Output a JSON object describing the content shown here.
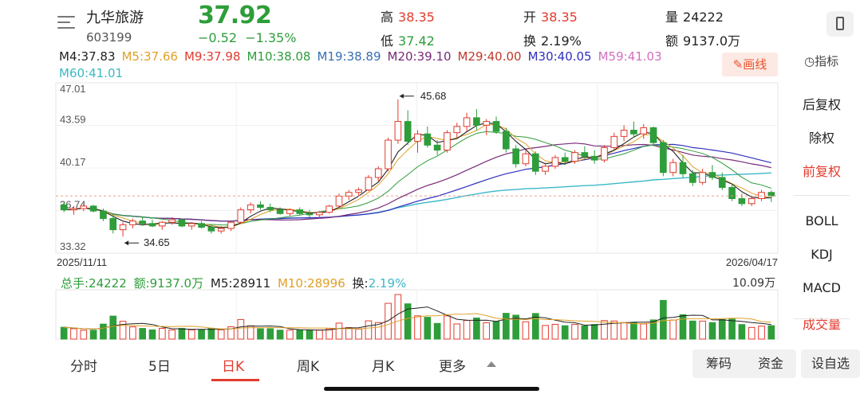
{
  "header": {
    "stock_name": "九华旅游",
    "stock_code": "603199",
    "price": "37.92",
    "change": "−0.52",
    "change_pct": "−1.35%",
    "high_label": "高",
    "high": "38.35",
    "low_label": "低",
    "low": "37.42",
    "open_label": "开",
    "open": "38.35",
    "turnover_label": "换",
    "turnover": "2.19%",
    "volume_label": "量",
    "volume": "24222",
    "amount_label": "额",
    "amount": "9137.0万"
  },
  "ma_row1": [
    {
      "text": "M4:37.83",
      "color": "#222222"
    },
    {
      "text": "M5:37.66",
      "color": "#e0a02a"
    },
    {
      "text": "M9:37.98",
      "color": "#e23b2e"
    },
    {
      "text": "M10:38.08",
      "color": "#2e9d3a"
    },
    {
      "text": "M19:38.89",
      "color": "#3a6fb5"
    },
    {
      "text": "M20:39.10",
      "color": "#7a2a7a"
    },
    {
      "text": "M29:40.00",
      "color": "#c0392b"
    },
    {
      "text": "M30:40.05",
      "color": "#3030c0"
    },
    {
      "text": "M59:41.03",
      "color": "#d070c0"
    }
  ],
  "ma_row2": [
    {
      "text": "M60:41.01",
      "color": "#3bb8c8"
    }
  ],
  "toolbar": {
    "draw_label": "✎画线",
    "indicator_label": "◷指标"
  },
  "side_menu": [
    {
      "label": "后复权",
      "active": false
    },
    {
      "label": "除权",
      "active": false
    },
    {
      "label": "前复权",
      "active": true
    },
    {
      "label": "BOLL",
      "active": false
    },
    {
      "label": "KDJ",
      "active": false
    },
    {
      "label": "MACD",
      "active": false
    },
    {
      "label": "成交量",
      "active": true
    }
  ],
  "volume_header": {
    "total_hands": "总手:24222",
    "amount": "额:9137.0万",
    "m5": "M5:28911",
    "m10": "M10:28996",
    "turnover_label": "换:",
    "turnover": "2.19%",
    "max_label": "10.09万"
  },
  "tabs": [
    {
      "label": "分时",
      "active": false
    },
    {
      "label": "5日",
      "active": false
    },
    {
      "label": "日K",
      "active": true
    },
    {
      "label": "周K",
      "active": false
    },
    {
      "label": "月K",
      "active": false
    },
    {
      "label": "更多",
      "active": false
    }
  ],
  "pills": {
    "chips": "筹码",
    "funds": "资金",
    "custom": "设自选"
  },
  "colors": {
    "up": "#e23b2e",
    "down": "#2e9d3a",
    "accent": "#e23b2e"
  },
  "chart_data": {
    "type": "candlestick",
    "y_ticks": [
      "47.01",
      "43.59",
      "40.17",
      "36.74",
      "33.32"
    ],
    "ylim": [
      33.32,
      47.01
    ],
    "x_start_label": "2025/11/11",
    "x_end_label": "2026/04/17",
    "high_annotation": "45.68",
    "low_annotation": "34.65",
    "last_close": 37.92,
    "candles": [
      [
        37.2,
        37.4,
        36.6,
        36.8
      ],
      [
        36.8,
        37.1,
        36.4,
        36.9
      ],
      [
        36.9,
        37.3,
        36.7,
        37.1
      ],
      [
        37.1,
        37.2,
        36.6,
        36.7
      ],
      [
        36.7,
        36.9,
        35.9,
        36.1
      ],
      [
        36.1,
        36.4,
        34.9,
        35.2
      ],
      [
        35.2,
        35.8,
        34.65,
        35.6
      ],
      [
        35.6,
        36.1,
        35.3,
        35.9
      ],
      [
        35.9,
        36.2,
        35.5,
        35.7
      ],
      [
        35.7,
        36.0,
        35.4,
        35.5
      ],
      [
        35.5,
        35.9,
        35.2,
        35.8
      ],
      [
        35.8,
        36.2,
        35.6,
        36.0
      ],
      [
        36.0,
        36.1,
        35.4,
        35.5
      ],
      [
        35.5,
        35.8,
        35.2,
        35.7
      ],
      [
        35.7,
        35.9,
        35.3,
        35.4
      ],
      [
        35.4,
        35.6,
        34.9,
        35.1
      ],
      [
        35.1,
        35.5,
        34.9,
        35.3
      ],
      [
        35.3,
        35.9,
        35.1,
        35.8
      ],
      [
        35.8,
        37.0,
        35.7,
        36.8
      ],
      [
        36.8,
        37.4,
        36.5,
        37.2
      ],
      [
        37.2,
        37.5,
        36.8,
        37.0
      ],
      [
        37.0,
        37.3,
        36.6,
        36.8
      ],
      [
        36.8,
        37.0,
        36.4,
        36.5
      ],
      [
        36.5,
        36.9,
        36.3,
        36.8
      ],
      [
        36.8,
        37.0,
        36.4,
        36.5
      ],
      [
        36.5,
        36.8,
        36.2,
        36.4
      ],
      [
        36.4,
        36.7,
        36.1,
        36.6
      ],
      [
        36.6,
        37.2,
        36.5,
        37.1
      ],
      [
        37.1,
        38.1,
        37.0,
        37.9
      ],
      [
        37.9,
        38.4,
        37.6,
        38.2
      ],
      [
        38.2,
        38.6,
        37.9,
        38.4
      ],
      [
        38.4,
        39.6,
        38.3,
        39.4
      ],
      [
        39.4,
        40.3,
        39.1,
        40.1
      ],
      [
        40.1,
        42.6,
        39.9,
        42.4
      ],
      [
        42.4,
        45.68,
        42.1,
        43.9
      ],
      [
        43.9,
        44.8,
        42.0,
        42.3
      ],
      [
        42.3,
        43.2,
        41.4,
        42.9
      ],
      [
        42.9,
        43.5,
        41.8,
        42.0
      ],
      [
        42.0,
        42.4,
        41.2,
        41.6
      ],
      [
        41.6,
        43.2,
        41.4,
        43.0
      ],
      [
        43.0,
        43.8,
        42.6,
        43.5
      ],
      [
        43.5,
        44.6,
        43.1,
        44.2
      ],
      [
        44.2,
        44.9,
        43.2,
        43.6
      ],
      [
        43.6,
        44.1,
        42.8,
        43.9
      ],
      [
        43.9,
        44.3,
        42.9,
        43.1
      ],
      [
        43.1,
        43.4,
        41.4,
        41.7
      ],
      [
        41.7,
        42.0,
        40.2,
        40.5
      ],
      [
        40.5,
        41.6,
        40.3,
        41.3
      ],
      [
        41.3,
        41.5,
        39.6,
        39.9
      ],
      [
        39.9,
        40.6,
        39.6,
        40.3
      ],
      [
        40.3,
        41.2,
        40.1,
        41.0
      ],
      [
        41.0,
        41.4,
        40.4,
        40.7
      ],
      [
        40.7,
        41.6,
        40.5,
        41.4
      ],
      [
        41.4,
        41.9,
        40.9,
        41.1
      ],
      [
        41.1,
        41.6,
        40.5,
        40.8
      ],
      [
        40.8,
        42.0,
        40.6,
        41.8
      ],
      [
        41.8,
        43.0,
        41.6,
        42.7
      ],
      [
        42.7,
        43.6,
        42.3,
        43.2
      ],
      [
        43.2,
        43.9,
        42.6,
        42.9
      ],
      [
        42.9,
        43.7,
        42.5,
        43.4
      ],
      [
        43.4,
        43.5,
        42.0,
        42.2
      ],
      [
        42.2,
        42.4,
        39.5,
        39.8
      ],
      [
        39.8,
        40.9,
        39.5,
        40.6
      ],
      [
        40.6,
        41.2,
        39.4,
        39.7
      ],
      [
        39.7,
        40.0,
        38.7,
        39.0
      ],
      [
        39.0,
        40.1,
        38.8,
        39.8
      ],
      [
        39.8,
        40.4,
        39.2,
        39.4
      ],
      [
        39.4,
        39.8,
        38.4,
        38.6
      ],
      [
        38.6,
        38.9,
        37.5,
        37.7
      ],
      [
        37.7,
        38.1,
        37.1,
        37.3
      ],
      [
        37.3,
        37.9,
        37.1,
        37.7
      ],
      [
        37.7,
        38.4,
        37.5,
        38.2
      ],
      [
        38.2,
        38.35,
        37.42,
        37.92
      ]
    ]
  }
}
